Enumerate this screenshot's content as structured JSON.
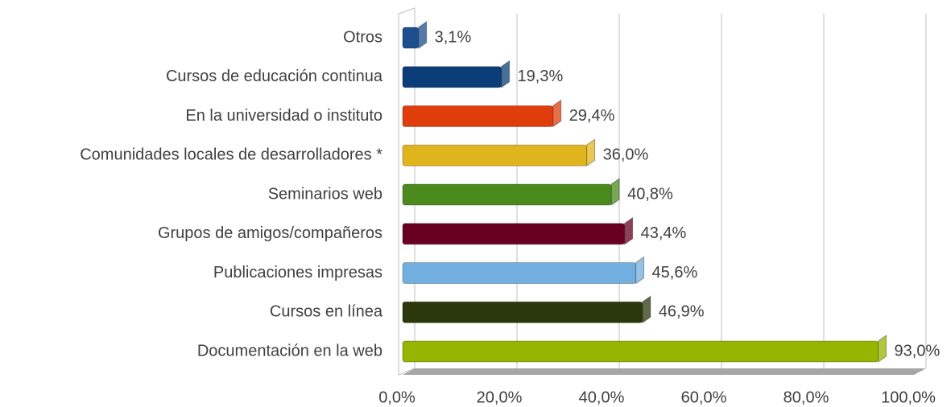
{
  "chart_data": {
    "type": "bar",
    "orientation": "horizontal",
    "categories": [
      "Otros",
      "Cursos de educación continua",
      "En la universidad o instituto",
      "Comunidades locales de desarrolladores *",
      "Seminarios web",
      "Grupos de amigos/compañeros",
      "Publicaciones impresas",
      "Cursos en línea",
      "Documentación en la web"
    ],
    "values": [
      3.1,
      19.3,
      29.4,
      36.0,
      40.8,
      43.4,
      45.6,
      46.9,
      93.0
    ],
    "value_labels": [
      "3,1%",
      "19,3%",
      "29,4%",
      "36,0%",
      "40,8%",
      "43,4%",
      "45,6%",
      "46,9%",
      "93,0%"
    ],
    "colors": [
      "#1d4f8f",
      "#0b3d78",
      "#e03d0c",
      "#e0b41c",
      "#4b8a1d",
      "#6a0021",
      "#71afe0",
      "#2a380b",
      "#96b500"
    ],
    "xlim": [
      0,
      100
    ],
    "xticks": [
      {
        "value": 0,
        "label": "0,0%"
      },
      {
        "value": 20,
        "label": "20,0%"
      },
      {
        "value": 40,
        "label": "40,0%"
      },
      {
        "value": 60,
        "label": "60,0%"
      },
      {
        "value": 80,
        "label": "80,0%"
      },
      {
        "value": 100,
        "label": "100,0%"
      }
    ],
    "grid": true
  }
}
